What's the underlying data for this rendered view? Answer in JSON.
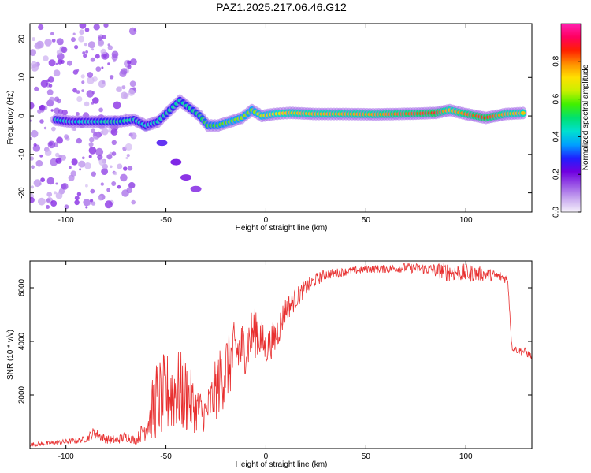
{
  "figure_title": "PAZ1.2025.217.06.46.G12",
  "colors": {
    "snr_line": "#e83030",
    "colormap": [
      "#f5f0fb",
      "#c8a8ef",
      "#9a55e6",
      "#7000e0",
      "#1f1fff",
      "#00a0ff",
      "#00e0d0",
      "#00e070",
      "#40f000",
      "#c8f000",
      "#ffe000",
      "#ff9000",
      "#ff2000",
      "#ff0060",
      "#ff20b0"
    ]
  },
  "chart_data": [
    {
      "type": "heatmap",
      "title": "PAZ1.2025.217.06.46.G12",
      "xlabel": "Height of straight line (km)",
      "ylabel": "Frequency (Hz)",
      "xlim": [
        -118,
        133
      ],
      "ylim": [
        -25,
        24
      ],
      "x_ticks": [
        -100,
        -50,
        0,
        50,
        100
      ],
      "y_ticks": [
        20,
        10,
        0,
        -10,
        -20
      ],
      "colorbar": {
        "label": "Normalized spectral amplitude",
        "range": [
          0,
          1
        ],
        "ticks": [
          0.0,
          0.2,
          0.4,
          0.6,
          0.8
        ]
      },
      "ridge": [
        {
          "x": -105,
          "y": -1.0,
          "amp": 0.45
        },
        {
          "x": -98,
          "y": -1.5,
          "amp": 0.4
        },
        {
          "x": -90,
          "y": -1.5,
          "amp": 0.42
        },
        {
          "x": -82,
          "y": -1.5,
          "amp": 0.45
        },
        {
          "x": -74,
          "y": -1.5,
          "amp": 0.48
        },
        {
          "x": -66,
          "y": -1.0,
          "amp": 0.45
        },
        {
          "x": -60,
          "y": -2.5,
          "amp": 0.42
        },
        {
          "x": -54,
          "y": -1.5,
          "amp": 0.45
        },
        {
          "x": -48,
          "y": 1.5,
          "amp": 0.47
        },
        {
          "x": -43,
          "y": 4.0,
          "amp": 0.45
        },
        {
          "x": -38,
          "y": 2.0,
          "amp": 0.47
        },
        {
          "x": -33,
          "y": 0.0,
          "amp": 0.5
        },
        {
          "x": -29,
          "y": -2.5,
          "amp": 0.55
        },
        {
          "x": -24,
          "y": -2.5,
          "amp": 0.58
        },
        {
          "x": -18,
          "y": -1.5,
          "amp": 0.6
        },
        {
          "x": -12,
          "y": -0.5,
          "amp": 0.62
        },
        {
          "x": -7,
          "y": 1.5,
          "amp": 0.6
        },
        {
          "x": -2,
          "y": 0.0,
          "amp": 0.66
        },
        {
          "x": 4,
          "y": 0.5,
          "amp": 0.7
        },
        {
          "x": 12,
          "y": 0.8,
          "amp": 0.74
        },
        {
          "x": 25,
          "y": 0.5,
          "amp": 0.75
        },
        {
          "x": 40,
          "y": 0.5,
          "amp": 0.76
        },
        {
          "x": 55,
          "y": 0.4,
          "amp": 0.77
        },
        {
          "x": 65,
          "y": 0.5,
          "amp": 0.8
        },
        {
          "x": 75,
          "y": 0.6,
          "amp": 0.82
        },
        {
          "x": 85,
          "y": 0.8,
          "amp": 0.85
        },
        {
          "x": 92,
          "y": 1.5,
          "amp": 0.74
        },
        {
          "x": 100,
          "y": 0.5,
          "amp": 0.8
        },
        {
          "x": 110,
          "y": -0.5,
          "amp": 0.85
        },
        {
          "x": 120,
          "y": 0.5,
          "amp": 0.76
        },
        {
          "x": 130,
          "y": 0.8,
          "amp": 0.74
        }
      ],
      "secondary_branch": [
        {
          "x": -60,
          "y": -3.0,
          "amp": 0.3
        },
        {
          "x": -52,
          "y": -7.0,
          "amp": 0.25
        },
        {
          "x": -45,
          "y": -12.0,
          "amp": 0.22
        },
        {
          "x": -40,
          "y": -16.0,
          "amp": 0.2
        },
        {
          "x": -35,
          "y": -19.0,
          "amp": 0.18
        }
      ],
      "scatter_region": {
        "x_range": [
          -118,
          -65
        ],
        "y_range": [
          -24,
          24
        ],
        "amp": 0.15
      }
    },
    {
      "type": "line",
      "xlabel": "Height of straight line (km)",
      "ylabel": "SNR (10 * v/v)",
      "xlim": [
        -118,
        133
      ],
      "ylim": [
        0,
        7000
      ],
      "x_ticks": [
        -100,
        -50,
        0,
        50,
        100
      ],
      "y_ticks": [
        2000,
        4000,
        6000
      ],
      "series": [
        {
          "x": [
            -118,
            -110,
            -100,
            -90,
            -86,
            -80,
            -75,
            -70,
            -65,
            -60,
            -55,
            -50,
            -45,
            -40,
            -35,
            -30,
            -25,
            -20,
            -15,
            -10,
            -5,
            0,
            5,
            10,
            15,
            20,
            25,
            30,
            40,
            50,
            60,
            70,
            80,
            90,
            100,
            110,
            118,
            121,
            123,
            125,
            130,
            133
          ],
          "values": [
            150,
            180,
            250,
            350,
            600,
            350,
            300,
            450,
            300,
            800,
            1800,
            2000,
            2200,
            2000,
            1500,
            1300,
            2200,
            3000,
            3600,
            3800,
            4500,
            3700,
            4200,
            5200,
            5600,
            6000,
            6300,
            6500,
            6600,
            6700,
            6700,
            6750,
            6700,
            6600,
            6550,
            6500,
            6400,
            6300,
            3800,
            3700,
            3600,
            3400
          ],
          "noise": [
            80,
            80,
            100,
            120,
            220,
            160,
            160,
            200,
            150,
            500,
            1500,
            1600,
            1600,
            1500,
            900,
            700,
            1200,
            1400,
            1200,
            1000,
            1100,
            600,
            700,
            500,
            400,
            300,
            250,
            200,
            150,
            150,
            150,
            180,
            200,
            350,
            350,
            250,
            200,
            150,
            150,
            150,
            150,
            150
          ]
        }
      ]
    }
  ]
}
